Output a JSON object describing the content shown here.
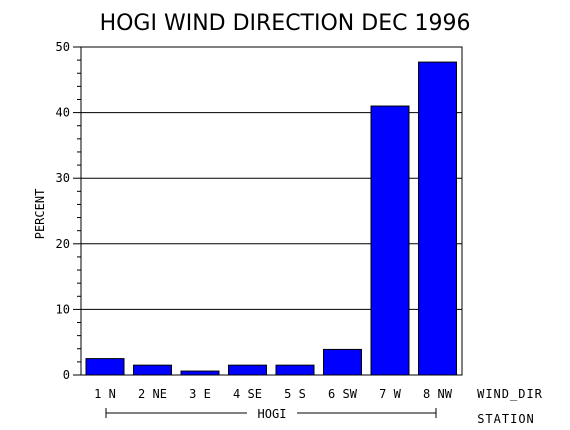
{
  "chart_data": {
    "type": "bar",
    "title": "HOGI WIND DIRECTION DEC 1996",
    "xlabel": "WIND_DIR",
    "ylabel": "PERCENT",
    "group_axis_label": "STATION",
    "group": "HOGI",
    "categories": [
      "1 N",
      "2 NE",
      "3 E",
      "4 SE",
      "5 S",
      "6 SW",
      "7 W",
      "8 NW"
    ],
    "values": [
      2.5,
      1.5,
      0.6,
      1.5,
      1.5,
      3.9,
      41.0,
      47.7
    ],
    "ylim": [
      0,
      50
    ],
    "yticks": [
      0,
      10,
      20,
      30,
      40,
      50
    ],
    "grid": true,
    "bar_color": "#0000ff"
  }
}
